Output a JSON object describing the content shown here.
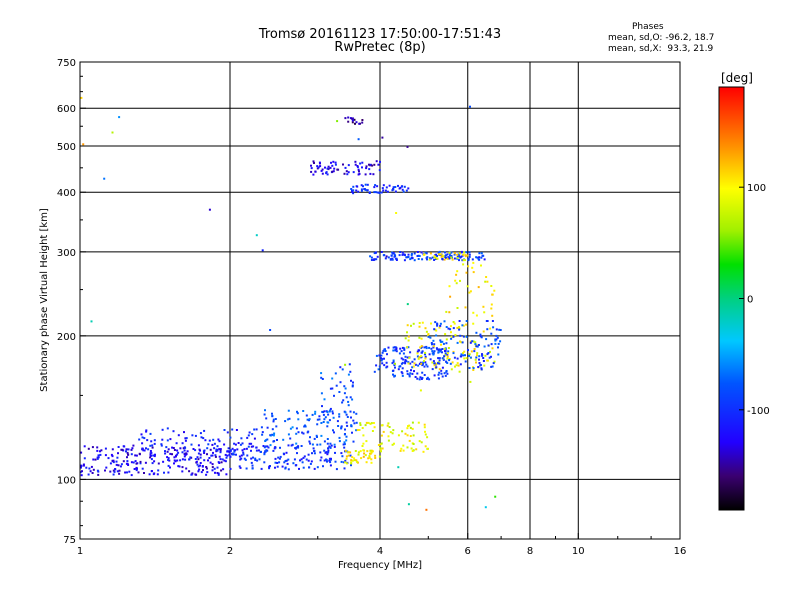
{
  "header": {
    "title_line1": "Tromsø 20161123 17:50:00-17:51:43",
    "title_line2": "RwPretec (8p)"
  },
  "stats": {
    "heading": "Phases",
    "line_o": "mean, sd,O: -96.2, 18.7",
    "line_x": "mean, sd,X:  93.3, 21.9"
  },
  "colorbar": {
    "label": "[deg]",
    "ticks": [
      {
        "value": 100,
        "label": "100"
      },
      {
        "value": 0,
        "label": "0"
      },
      {
        "value": -100,
        "label": "-100"
      }
    ],
    "range": [
      -190,
      190
    ]
  },
  "chart_data": {
    "type": "scatter",
    "title": "Tromsø 20161123 17:50:00-17:51:43",
    "subtitle": "RwPretec (8p)",
    "xlabel": "Frequency [MHz]",
    "ylabel": "Stationary phase Virtual Height [km]",
    "x_scale": "log",
    "y_scale": "log",
    "xlim": [
      1,
      16
    ],
    "ylim": [
      75,
      750
    ],
    "x_ticks": [
      {
        "value": 1,
        "label": "1"
      },
      {
        "value": 2,
        "label": "2"
      },
      {
        "value": 4,
        "label": "4"
      },
      {
        "value": 6,
        "label": "6"
      },
      {
        "value": 8,
        "label": "8"
      },
      {
        "value": 10,
        "label": "10"
      },
      {
        "value": 16,
        "label": "16"
      }
    ],
    "x_gridlines": [
      2,
      4,
      6,
      8,
      10
    ],
    "y_ticks": [
      {
        "value": 75,
        "label": "75"
      },
      {
        "value": 100,
        "label": "100"
      },
      {
        "value": 200,
        "label": "200"
      },
      {
        "value": 300,
        "label": "300"
      },
      {
        "value": 400,
        "label": "400"
      },
      {
        "value": 500,
        "label": "500"
      },
      {
        "value": 600,
        "label": "600"
      },
      {
        "value": 750,
        "label": "750"
      }
    ],
    "y_gridlines": [
      100,
      200,
      300,
      400,
      500,
      600
    ],
    "color_by": "phase [deg]",
    "clusters": [
      {
        "f": [
          1.0,
          2.0
        ],
        "h": [
          102,
          118
        ],
        "phase": -125,
        "n": 260
      },
      {
        "f": [
          1.3,
          2.3
        ],
        "h": [
          112,
          128
        ],
        "phase": -110,
        "n": 90
      },
      {
        "f": [
          2.0,
          3.5
        ],
        "h": [
          105,
          118
        ],
        "phase": -100,
        "n": 160
      },
      {
        "f": [
          2.3,
          3.6
        ],
        "h": [
          118,
          140
        ],
        "phase": -80,
        "n": 120
      },
      {
        "f": [
          3.0,
          3.6
        ],
        "h": [
          128,
          175
        ],
        "phase": -85,
        "n": 50
      },
      {
        "f": [
          3.4,
          4.0
        ],
        "h": [
          108,
          115
        ],
        "phase": 100,
        "n": 45
      },
      {
        "f": [
          3.6,
          5.0
        ],
        "h": [
          114,
          132
        ],
        "phase": 90,
        "n": 75
      },
      {
        "f": [
          3.9,
          5.5
        ],
        "h": [
          162,
          190
        ],
        "phase": -95,
        "n": 170
      },
      {
        "f": [
          4.5,
          6.8
        ],
        "h": [
          168,
          215
        ],
        "phase": 95,
        "n": 110
      },
      {
        "f": [
          5.0,
          7.0
        ],
        "h": [
          170,
          215
        ],
        "phase": -90,
        "n": 120
      },
      {
        "f": [
          3.8,
          6.5
        ],
        "h": [
          288,
          300
        ],
        "phase": -95,
        "n": 130
      },
      {
        "f": [
          4.9,
          6.0
        ],
        "h": [
          288,
          300
        ],
        "phase": 100,
        "n": 30
      },
      {
        "f": [
          2.9,
          4.0
        ],
        "h": [
          435,
          465
        ],
        "phase": -130,
        "n": 70
      },
      {
        "f": [
          3.5,
          4.6
        ],
        "h": [
          398,
          415
        ],
        "phase": -100,
        "n": 55
      },
      {
        "f": [
          3.4,
          3.7
        ],
        "h": [
          555,
          575
        ],
        "phase": -150,
        "n": 15
      },
      {
        "f": [
          5.4,
          6.8
        ],
        "h": [
          220,
          290
        ],
        "phase": 100,
        "n": 35
      },
      {
        "f": [
          1.0,
          8.0
        ],
        "h": [
          80,
          700
        ],
        "phase": 0,
        "n": 30
      }
    ]
  }
}
